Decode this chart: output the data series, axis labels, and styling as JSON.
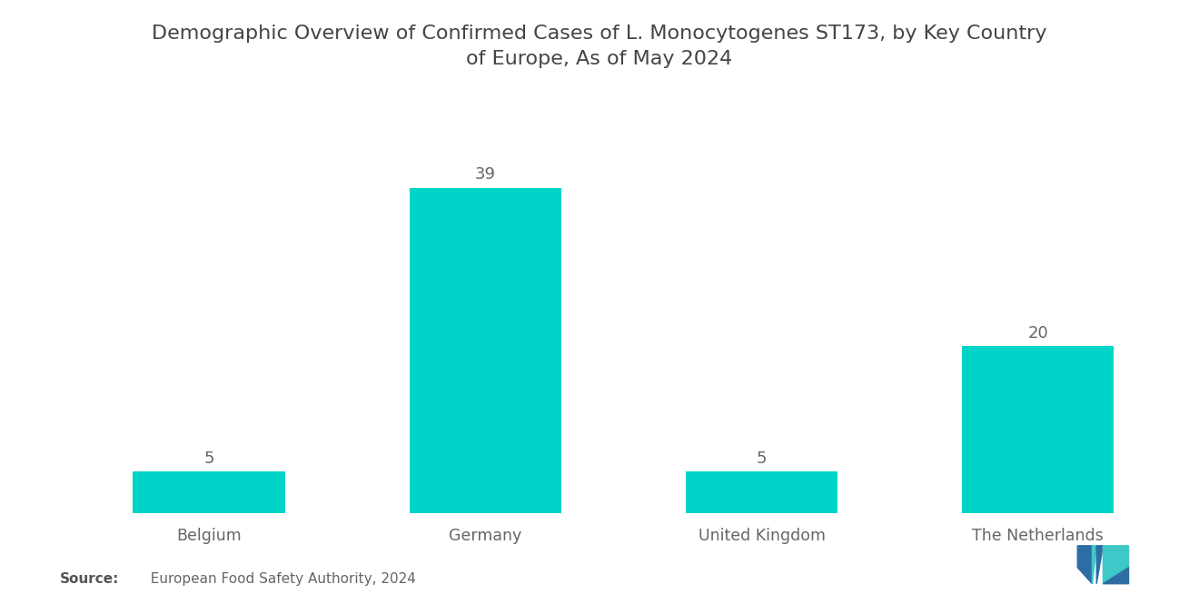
{
  "title": "Demographic Overview of Confirmed Cases of L. Monocytogenes ST173, by Key Country\nof Europe, As of May 2024",
  "categories": [
    "Belgium",
    "Germany",
    "United Kingdom",
    "The Netherlands"
  ],
  "values": [
    5,
    39,
    5,
    20
  ],
  "bar_color": "#00D4C8",
  "background_color": "#ffffff",
  "title_fontsize": 16,
  "label_fontsize": 12.5,
  "value_fontsize": 13,
  "source_bold": "Source:",
  "source_normal": "  European Food Safety Authority, 2024",
  "ylim": [
    0,
    47
  ],
  "bar_width": 0.55,
  "logo_blue": "#2e6da4",
  "logo_teal": "#3ec8c8"
}
